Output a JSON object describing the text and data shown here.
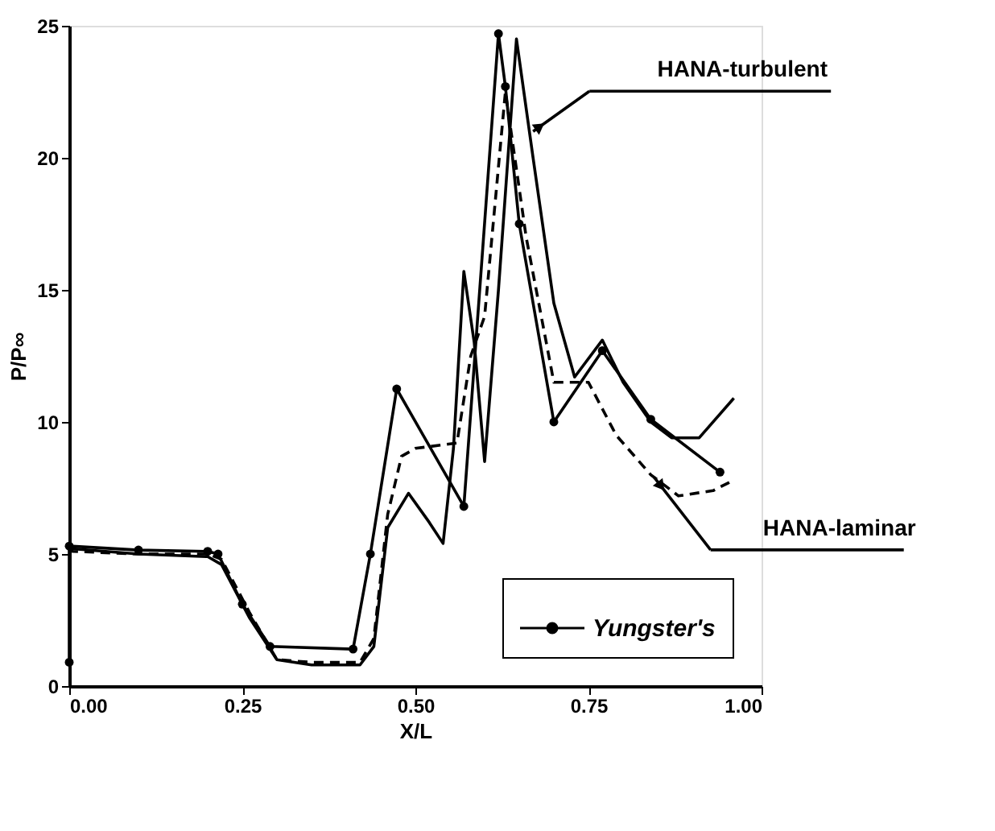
{
  "chart_data": {
    "type": "line",
    "xlabel": "X/L",
    "ylabel": "P/P∞",
    "xlim": [
      0,
      1
    ],
    "ylim": [
      0,
      25
    ],
    "xticks": [
      {
        "value": 0,
        "label": "0.00"
      },
      {
        "value": 0.25,
        "label": "0.25"
      },
      {
        "value": 0.5,
        "label": "0.50"
      },
      {
        "value": 0.75,
        "label": "0.75"
      },
      {
        "value": 1,
        "label": "1.00"
      }
    ],
    "yticks": [
      0,
      5,
      10,
      15,
      20,
      25
    ],
    "grid": false,
    "legend": "bottom right",
    "series": [
      {
        "color": "#000000",
        "line_style": "solid",
        "marker": "none",
        "x": [
          0,
          0.005,
          0.1,
          0.2,
          0.22,
          0.26,
          0.3,
          0.35,
          0.42,
          0.44,
          0.46,
          0.49,
          0.52,
          0.54,
          0.555,
          0.57,
          0.585,
          0.6,
          0.62,
          0.646,
          0.67,
          0.7,
          0.73,
          0.77,
          0.8,
          0.84,
          0.87,
          0.91,
          0.96
        ],
        "values": [
          5.4,
          5.2,
          5.0,
          4.9,
          4.6,
          2.6,
          1.0,
          0.8,
          0.8,
          1.5,
          6.0,
          7.3,
          6.2,
          5.4,
          9.0,
          15.7,
          13.0,
          8.5,
          15.0,
          24.5,
          20.0,
          14.5,
          11.7,
          13.1,
          11.5,
          10.0,
          9.4,
          9.4,
          10.9
        ]
      },
      {
        "color": "#000000",
        "line_style": "dashed",
        "marker": "none",
        "x": [
          0,
          0.005,
          0.1,
          0.2,
          0.22,
          0.26,
          0.3,
          0.35,
          0.42,
          0.44,
          0.46,
          0.48,
          0.5,
          0.56,
          0.58,
          0.6,
          0.63,
          0.66,
          0.7,
          0.75,
          0.79,
          0.84,
          0.88,
          0.93,
          0.96
        ],
        "values": [
          5.2,
          5.1,
          5.0,
          5.0,
          4.8,
          2.8,
          1.0,
          0.9,
          0.9,
          1.8,
          6.5,
          8.7,
          9.0,
          9.2,
          12.5,
          14.0,
          22.5,
          17.0,
          11.5,
          11.5,
          9.5,
          8.0,
          7.2,
          7.4,
          7.8
        ]
      },
      {
        "name": "Yungster's",
        "color": "#000000",
        "line_style": "solid",
        "marker": "circle",
        "x": [
          0,
          0,
          0.1,
          0.2,
          0.215,
          0.25,
          0.29,
          0.41,
          0.435,
          0.473,
          0.57,
          0.62,
          0.63,
          0.65,
          0.7,
          0.77,
          0.84,
          0.94
        ],
        "values": [
          0.9,
          5.3,
          5.15,
          5.1,
          5.0,
          3.1,
          1.5,
          1.4,
          5.0,
          11.25,
          6.8,
          24.7,
          22.7,
          17.5,
          10.0,
          12.7,
          10.1,
          8.1
        ]
      }
    ],
    "annotations": [
      "HANA-turbulent",
      "HANA-laminar"
    ]
  }
}
